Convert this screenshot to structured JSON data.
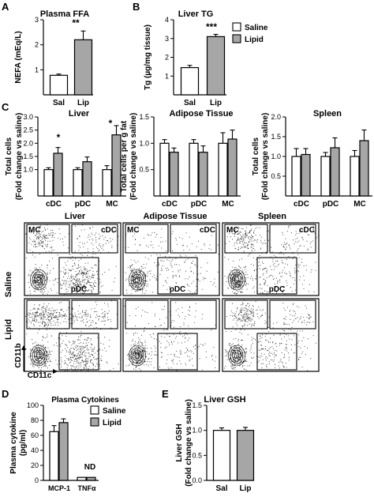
{
  "panel_letters": {
    "A": "A",
    "B": "B",
    "C": "C",
    "D": "D",
    "E": "E"
  },
  "significance": {
    "A": "**",
    "B": "***",
    "C_liver_cDC": "*",
    "C_liver_MC": "*"
  },
  "nd_label": "ND",
  "colors": {
    "saline": "#ffffff",
    "lipid": "#a6a6a6",
    "outline": "#000000"
  },
  "chart_data": [
    {
      "id": "A",
      "type": "bar",
      "title": "Plasma FFA",
      "xlabel": "",
      "ylabel": "NEFA (mEq/L)",
      "categories": [
        "Sal",
        "Lip"
      ],
      "series": [
        {
          "values": [
            0.78,
            2.2
          ],
          "errors": [
            0.05,
            0.35
          ]
        }
      ],
      "ylim": [
        0,
        3
      ],
      "yticks": [
        1,
        2,
        3
      ],
      "bar_colors": [
        "#ffffff",
        "#a6a6a6"
      ],
      "grid": false
    },
    {
      "id": "B",
      "type": "bar",
      "title": "Liver TG",
      "xlabel": "",
      "ylabel": "Tg (µg/mg tissue)",
      "categories": [
        "Sal",
        "Lip"
      ],
      "series": [
        {
          "values": [
            1.45,
            3.1
          ],
          "errors": [
            0.12,
            0.12
          ]
        }
      ],
      "ylim": [
        0,
        4
      ],
      "yticks": [
        1,
        2,
        3,
        4
      ],
      "bar_colors": [
        "#ffffff",
        "#a6a6a6"
      ],
      "grid": false,
      "legend": [
        "Saline",
        "Lipid"
      ],
      "legend_position": "right"
    },
    {
      "id": "C-liver",
      "type": "bar",
      "title": "Liver",
      "xlabel": "",
      "ylabel": "Total cells (Fold change vs saline)",
      "categories": [
        "cDC",
        "pDC",
        "MC"
      ],
      "series": [
        {
          "name": "Saline",
          "values": [
            1.0,
            1.0,
            1.0
          ],
          "errors": [
            0.07,
            0.07,
            0.15
          ]
        },
        {
          "name": "Lipid",
          "values": [
            1.62,
            1.3,
            2.32
          ],
          "errors": [
            0.22,
            0.18,
            0.35
          ]
        }
      ],
      "ylim": [
        0,
        3
      ],
      "yticks": [
        1.0,
        1.5,
        2.0,
        2.5,
        3.0
      ],
      "grid": false
    },
    {
      "id": "C-adipose",
      "type": "bar",
      "title": "Adipose Tissue",
      "xlabel": "",
      "ylabel": "Total cells per g fat (Fold change vs saline)",
      "categories": [
        "cDC",
        "pDC",
        "MC"
      ],
      "series": [
        {
          "name": "Saline",
          "values": [
            1.0,
            1.0,
            1.0
          ],
          "errors": [
            0.07,
            0.07,
            0.2
          ]
        },
        {
          "name": "Lipid",
          "values": [
            0.83,
            0.83,
            1.08
          ],
          "errors": [
            0.08,
            0.12,
            0.17
          ]
        }
      ],
      "ylim": [
        0,
        1.5
      ],
      "yticks": [
        0.5,
        1.0,
        1.5
      ],
      "grid": false
    },
    {
      "id": "C-spleen",
      "type": "bar",
      "title": "Spleen",
      "xlabel": "",
      "ylabel": "Total cells (Fold change vs saline)",
      "categories": [
        "cDC",
        "pDC",
        "MC"
      ],
      "series": [
        {
          "name": "Saline",
          "values": [
            1.0,
            1.0,
            1.0
          ],
          "errors": [
            0.2,
            0.1,
            0.15
          ]
        },
        {
          "name": "Lipid",
          "values": [
            1.05,
            1.22,
            1.4
          ],
          "errors": [
            0.15,
            0.25,
            0.27
          ]
        }
      ],
      "ylim": [
        0,
        2
      ],
      "yticks": [
        0.5,
        1.0,
        1.5,
        2.0
      ],
      "grid": false
    },
    {
      "id": "D",
      "type": "bar",
      "title": "Plasma Cytokines",
      "xlabel": "",
      "ylabel": "Plasma cytokine (pg/ml)",
      "categories": [
        "MCP-1",
        "TNFα"
      ],
      "series": [
        {
          "name": "Saline",
          "values": [
            65,
            4
          ],
          "errors": [
            8,
            0
          ]
        },
        {
          "name": "Lipid",
          "values": [
            77,
            4
          ],
          "errors": [
            5,
            0
          ]
        }
      ],
      "ylim": [
        0,
        100
      ],
      "yticks": [
        0,
        20,
        40,
        60,
        80,
        100
      ],
      "grid": false,
      "legend": [
        "Saline",
        "Lipid"
      ],
      "legend_position": "right"
    },
    {
      "id": "E",
      "type": "bar",
      "title": "Liver GSH",
      "xlabel": "",
      "ylabel": "Liver GSH (Fold change vs saline)",
      "categories": [
        "Sal",
        "Lip"
      ],
      "series": [
        {
          "values": [
            1.0,
            1.0
          ],
          "errors": [
            0.05,
            0.06
          ]
        }
      ],
      "ylim": [
        0,
        1.5
      ],
      "yticks": [
        0.0,
        0.5,
        1.0,
        1.5
      ],
      "bar_colors": [
        "#ffffff",
        "#a6a6a6"
      ],
      "grid": false
    }
  ],
  "facs": {
    "columns": [
      "Liver",
      "Adipose Tissue",
      "Spleen"
    ],
    "rows": [
      "Saline",
      "Lipid"
    ],
    "gates": {
      "mc": "MC",
      "cdc": "cDC",
      "pdc": "pDC"
    },
    "y_axis_label": "CD11b",
    "x_axis_label": "CD11c"
  }
}
